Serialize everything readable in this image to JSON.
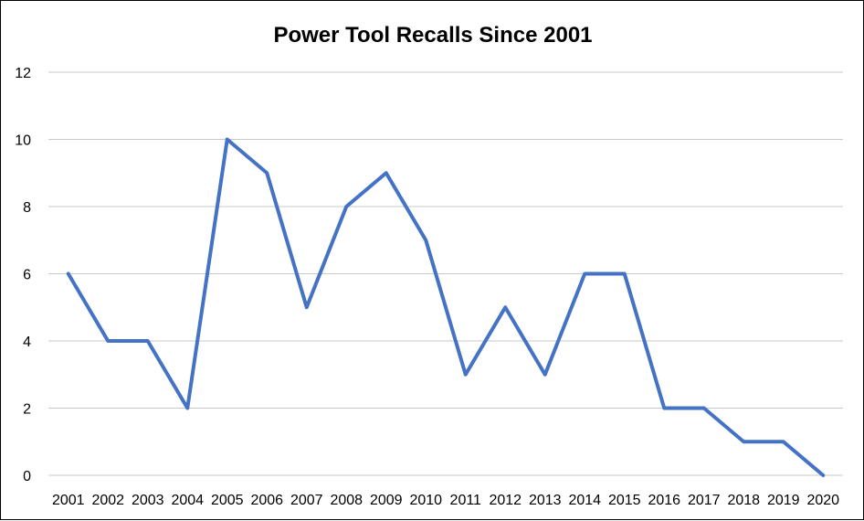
{
  "chart_data": {
    "type": "line",
    "title": "Power Tool Recalls Since 2001",
    "xlabel": "",
    "ylabel": "",
    "categories": [
      "2001",
      "2002",
      "2003",
      "2004",
      "2005",
      "2006",
      "2007",
      "2008",
      "2009",
      "2010",
      "2011",
      "2012",
      "2013",
      "2014",
      "2015",
      "2016",
      "2017",
      "2018",
      "2019",
      "2020"
    ],
    "series": [
      {
        "values": [
          6,
          4,
          4,
          2,
          10,
          9,
          5,
          8,
          9,
          7,
          3,
          5,
          3,
          6,
          6,
          2,
          2,
          1,
          1,
          0
        ]
      }
    ],
    "ylim": [
      0,
      12
    ],
    "yticks": [
      0,
      2,
      4,
      6,
      8,
      10,
      12
    ],
    "grid": true,
    "legend": "none",
    "colors": {
      "line": "#4472C4",
      "grid": "#c8c8c8"
    }
  }
}
